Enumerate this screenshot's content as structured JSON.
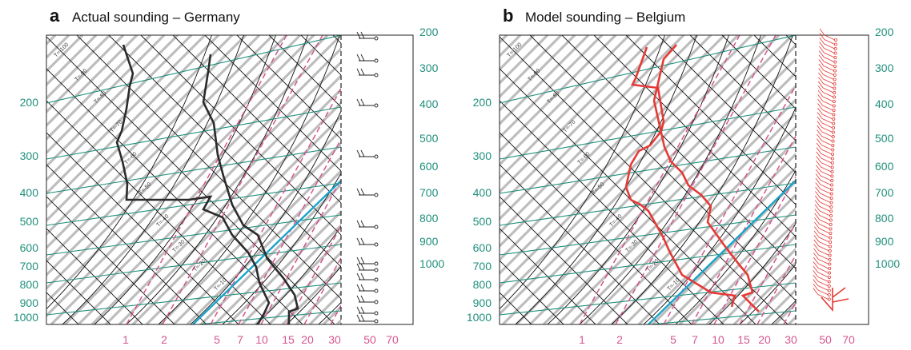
{
  "chart_data": [
    {
      "type": "line",
      "panel_letter": "a",
      "title": "Actual sounding – Germany",
      "left_pressure_labels": [
        "200",
        "300",
        "400",
        "500",
        "600",
        "700",
        "800",
        "900",
        "1000"
      ],
      "right_labels": [
        "200",
        "300",
        "400",
        "500",
        "600",
        "700",
        "800",
        "900",
        "1000"
      ],
      "bottom_labels": [
        "1",
        "2",
        "5",
        "7",
        "10",
        "15",
        "20",
        "30",
        "50",
        "70"
      ],
      "isotherm_labels": [
        "T=-100",
        "T=-90",
        "T=-80",
        "T=-70",
        "T=-60",
        "T=-50",
        "T=-40",
        "T=-30",
        "T=-20",
        "T=-10"
      ],
      "colors": {
        "profile": "#2b2b2b",
        "isotherm": "#111111",
        "grid": "#bdbdbd",
        "adiabat": "#1f8f7c",
        "mixing_ratio": "#d6558f",
        "highlight": "#1aa3c8"
      }
    },
    {
      "type": "line",
      "panel_letter": "b",
      "title": "Model sounding – Belgium",
      "left_pressure_labels": [
        "200",
        "300",
        "400",
        "500",
        "600",
        "700",
        "800",
        "900",
        "1000"
      ],
      "right_labels": [
        "200",
        "300",
        "400",
        "500",
        "600",
        "700",
        "800",
        "900",
        "1000"
      ],
      "bottom_labels": [
        "1",
        "2",
        "5",
        "7",
        "10",
        "15",
        "20",
        "30",
        "50",
        "70"
      ],
      "isotherm_labels": [
        "T=-100",
        "T=-90",
        "T=-80",
        "T=-70",
        "T=-60",
        "T=-50",
        "T=-40",
        "T=-30",
        "T=-20",
        "T=-10"
      ],
      "colors": {
        "profile": "#e53935",
        "isotherm": "#111111",
        "grid": "#bdbdbd",
        "adiabat": "#1f8f7c",
        "mixing_ratio": "#d6558f",
        "highlight": "#1aa3c8"
      }
    }
  ]
}
